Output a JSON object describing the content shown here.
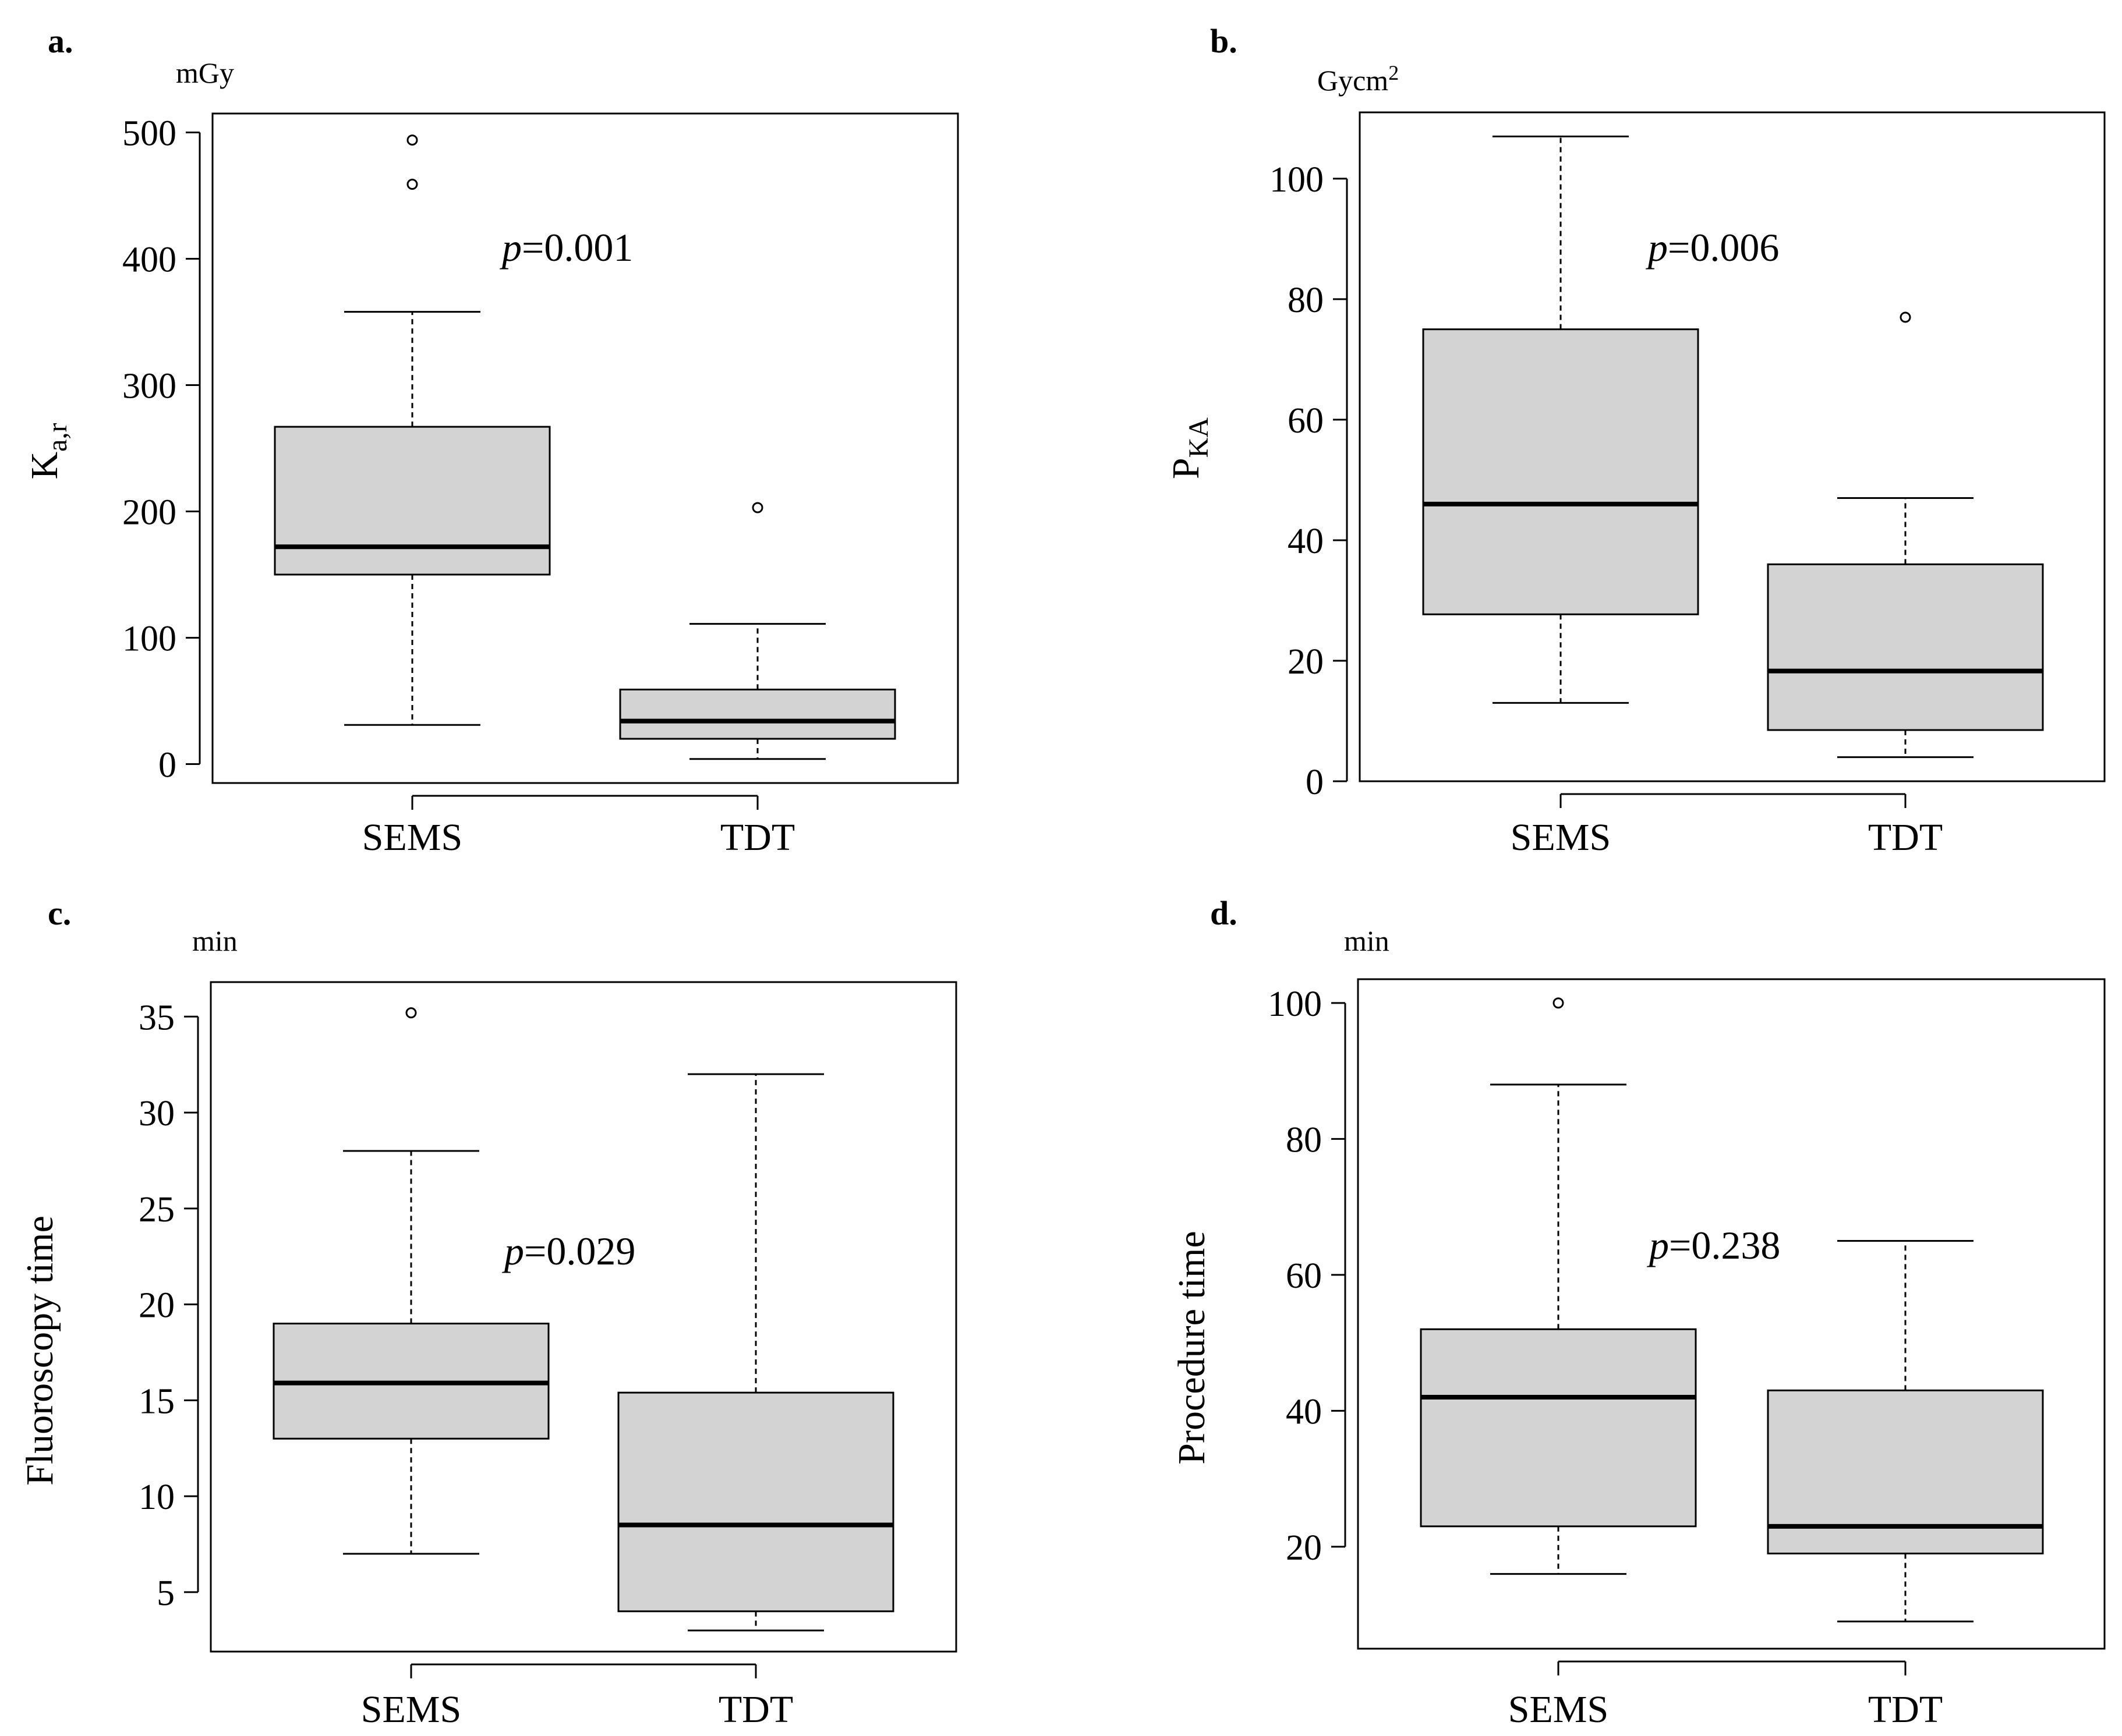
{
  "chart_data": [
    {
      "panel": "a.",
      "type": "boxplot",
      "unit": "mGy",
      "ylabel_main": "K",
      "ylabel_sub": "a,r",
      "p_label": "p",
      "p_value": "=0.001",
      "categories": [
        "SEMS",
        "TDT"
      ],
      "ylim": [
        -15,
        515
      ],
      "yticks": [
        0,
        100,
        200,
        300,
        400,
        500
      ],
      "boxes": [
        {
          "name": "SEMS",
          "whisker_low": 31,
          "q1": 150,
          "median": 172,
          "q3": 267,
          "whisker_high": 358,
          "outliers": [
            459,
            494
          ]
        },
        {
          "name": "TDT",
          "whisker_low": 4,
          "q1": 20,
          "median": 34,
          "q3": 59,
          "whisker_high": 111,
          "outliers": [
            203
          ]
        }
      ]
    },
    {
      "panel": "b.",
      "type": "boxplot",
      "unit": "Gycm",
      "unit_sup": "2",
      "ylabel_main": "P",
      "ylabel_sub": "KA",
      "p_label": "p",
      "p_value": "=0.006",
      "categories": [
        "SEMS",
        "TDT"
      ],
      "ylim": [
        0,
        111
      ],
      "yticks": [
        0,
        20,
        40,
        60,
        80,
        100
      ],
      "boxes": [
        {
          "name": "SEMS",
          "whisker_low": 13,
          "q1": 27.7,
          "median": 46,
          "q3": 75,
          "whisker_high": 107,
          "outliers": []
        },
        {
          "name": "TDT",
          "whisker_low": 4,
          "q1": 8.5,
          "median": 18.3,
          "q3": 36,
          "whisker_high": 47,
          "outliers": [
            77
          ]
        }
      ]
    },
    {
      "panel": "c.",
      "type": "boxplot",
      "unit": "min",
      "ylabel_main": "Fluoroscopy time",
      "ylabel_sub": "",
      "p_label": "p",
      "p_value": "=0.029",
      "categories": [
        "SEMS",
        "TDT"
      ],
      "ylim": [
        1.9,
        36.8
      ],
      "yticks": [
        5,
        10,
        15,
        20,
        25,
        30,
        35
      ],
      "boxes": [
        {
          "name": "SEMS",
          "whisker_low": 7,
          "q1": 13,
          "median": 15.9,
          "q3": 19,
          "whisker_high": 28,
          "outliers": [
            35.2
          ]
        },
        {
          "name": "TDT",
          "whisker_low": 3,
          "q1": 4,
          "median": 8.5,
          "q3": 15.4,
          "whisker_high": 32,
          "outliers": []
        }
      ]
    },
    {
      "panel": "d.",
      "type": "boxplot",
      "unit": "min",
      "ylabel_main": "Procedure time",
      "ylabel_sub": "",
      "p_label": "p",
      "p_value": "=0.238",
      "categories": [
        "SEMS",
        "TDT"
      ],
      "ylim": [
        5,
        103.5
      ],
      "yticks": [
        20,
        40,
        60,
        80,
        100
      ],
      "boxes": [
        {
          "name": "SEMS",
          "whisker_low": 16,
          "q1": 23,
          "median": 42,
          "q3": 52,
          "whisker_high": 88,
          "outliers": [
            100
          ]
        },
        {
          "name": "TDT",
          "whisker_low": 9,
          "q1": 19,
          "median": 23,
          "q3": 43,
          "whisker_high": 65,
          "outliers": []
        }
      ]
    }
  ]
}
